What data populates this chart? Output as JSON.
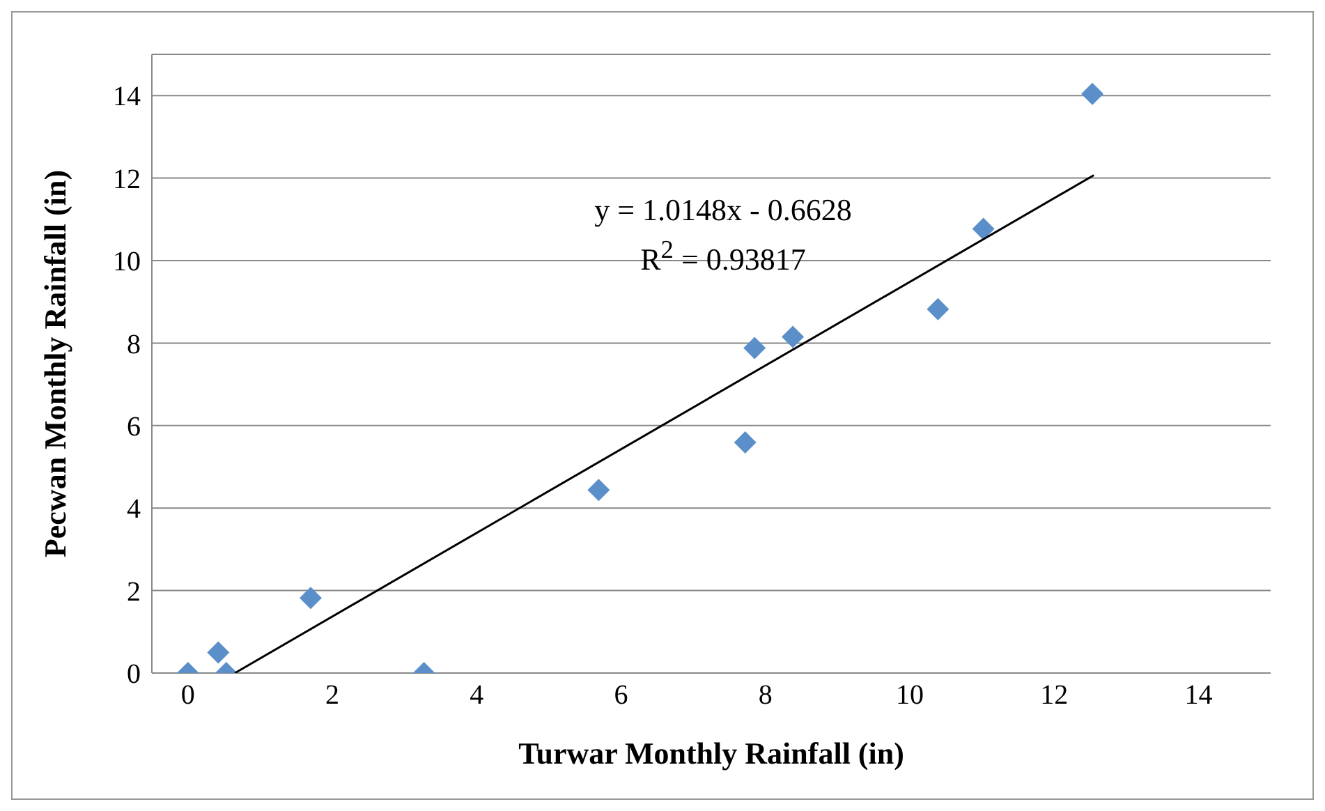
{
  "chart_data": {
    "type": "scatter",
    "xlabel": "Turwar Monthly Rainfall (in)",
    "ylabel": "Pecwan Monthly Rainfall (in)",
    "annotations": [
      "y = 1.0148x - 0.6628",
      "R$^{2}$ = 0.93817"
    ],
    "series": [
      {
        "color": "#5b8fc9",
        "x": [
          0,
          0.42,
          0.53,
          1.7,
          3.27,
          5.69,
          7.72,
          7.85,
          8.38,
          10.39,
          11.02,
          12.53
        ],
        "values": [
          0,
          0.5,
          0,
          1.82,
          0,
          4.44,
          5.59,
          7.88,
          8.15,
          8.82,
          10.77,
          14.04
        ]
      },
      {
        "type": "line",
        "marker": "none",
        "color": "#000000",
        "x": [
          0.65,
          12.55
        ],
        "values": [
          0,
          12.07
        ]
      }
    ],
    "xlim": [
      -0.5,
      15
    ],
    "xticks": [
      0,
      2,
      4,
      6,
      8,
      10,
      12,
      14
    ],
    "ylim": [
      0,
      15
    ],
    "yticks": [
      0,
      2,
      4,
      6,
      8,
      10,
      12,
      14
    ],
    "grid": "y",
    "marker": "diamond"
  }
}
